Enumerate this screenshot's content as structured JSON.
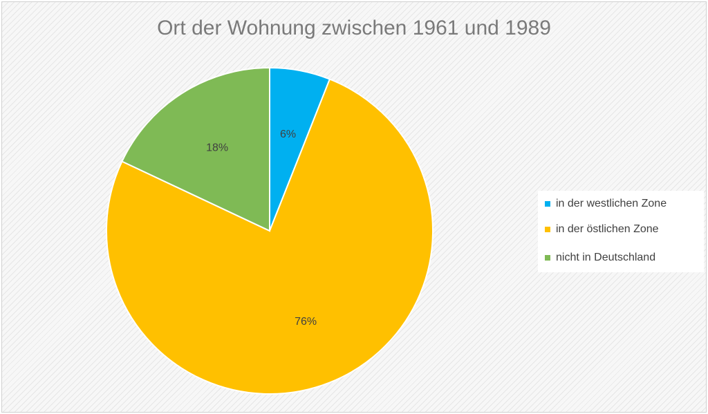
{
  "chart_data": {
    "type": "pie",
    "title": "Ort der Wohnung zwischen 1961 und 1989",
    "categories": [
      "in der westlichen Zone",
      "in der östlichen Zone",
      "nicht in Deutschland"
    ],
    "values": [
      6,
      76,
      18
    ],
    "labels": [
      "6%",
      "76%",
      "18%"
    ],
    "colors": [
      "#00b0f0",
      "#ffc000",
      "#7fba55"
    ],
    "legend_position": "right"
  }
}
